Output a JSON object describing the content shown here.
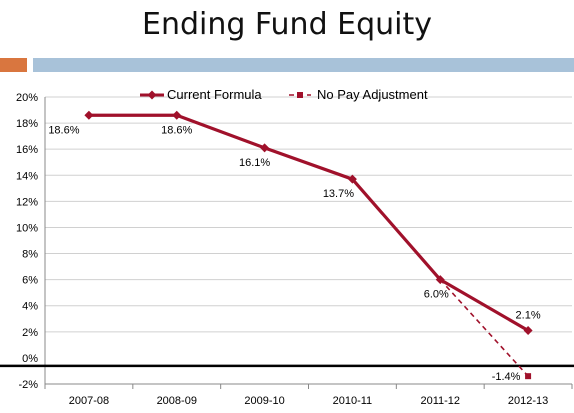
{
  "slide": {
    "title": "Ending Fund Equity"
  },
  "colors": {
    "accent_orange": "#D9763F",
    "accent_blue": "#A8C2D9",
    "series_color": "#A0112B",
    "axis_color": "#000000",
    "grid_color": "#D0D0D0"
  },
  "chart_data": {
    "type": "line",
    "title": "",
    "xlabel": "",
    "ylabel": "",
    "categories": [
      "2007-08",
      "2008-09",
      "2009-10",
      "2010-11",
      "2011-12",
      "2012-13"
    ],
    "ylim": [
      -2,
      20
    ],
    "yticks": [
      -2,
      0,
      2,
      4,
      6,
      8,
      10,
      12,
      14,
      16,
      18,
      20
    ],
    "ytick_labels": [
      "-2%",
      "0%",
      "2%",
      "4%",
      "6%",
      "8%",
      "10%",
      "12%",
      "14%",
      "16%",
      "18%",
      "20%"
    ],
    "y_unit": "%",
    "grid": "horizontal",
    "legend_position": "top",
    "series": [
      {
        "name": "Current Formula",
        "style": "solid",
        "marker": "diamond",
        "values": [
          18.6,
          18.6,
          16.1,
          13.7,
          6.0,
          2.1
        ],
        "labels": [
          "18.6%",
          "18.6%",
          "16.1%",
          "13.7%",
          "6.0%",
          "2.1%"
        ]
      },
      {
        "name": "No Pay Adjustment",
        "style": "dashed",
        "marker": "square",
        "values": [
          null,
          null,
          null,
          null,
          6.0,
          -1.4
        ],
        "labels": [
          null,
          null,
          null,
          null,
          null,
          "-1.4%"
        ]
      }
    ]
  }
}
